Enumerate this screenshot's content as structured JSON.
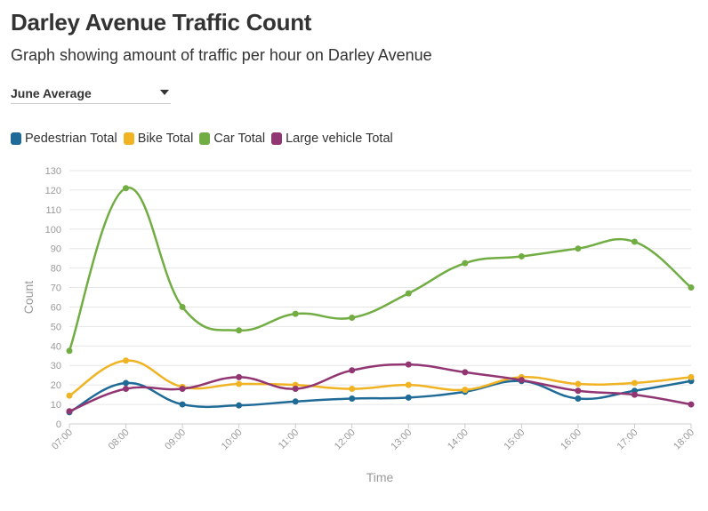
{
  "page": {
    "title": "Darley Avenue Traffic Count",
    "subtitle": "Graph showing amount of traffic per hour on Darley Avenue",
    "dropdown": {
      "selected": "June Average"
    }
  },
  "chart_data": {
    "type": "line",
    "x": [
      "07:00",
      "08:00",
      "09:00",
      "10:00",
      "11:00",
      "12:00",
      "13:00",
      "14:00",
      "15:00",
      "16:00",
      "17:00",
      "18:00"
    ],
    "xlabel": "Time",
    "ylabel": "Count",
    "ylim": [
      0,
      130
    ],
    "yticks": [
      0,
      10,
      20,
      30,
      40,
      50,
      60,
      70,
      80,
      90,
      100,
      110,
      120,
      130
    ],
    "grid": true,
    "legend_position": "top-left",
    "series": [
      {
        "name": "Pedestrian Total",
        "color": "#1f6a96",
        "values": [
          6,
          21,
          10,
          9.5,
          11.5,
          13,
          13.5,
          16.5,
          22,
          13,
          17,
          22
        ]
      },
      {
        "name": "Bike Total",
        "color": "#f0b323",
        "values": [
          14.5,
          32.5,
          19,
          20.5,
          20,
          18,
          20,
          17.5,
          24,
          20.5,
          21,
          24
        ]
      },
      {
        "name": "Car Total",
        "color": "#72ad44",
        "values": [
          37.5,
          121,
          60,
          48,
          56.5,
          54.5,
          67,
          82.5,
          86,
          90,
          93.5,
          70
        ]
      },
      {
        "name": "Large vehicle Total",
        "color": "#913672",
        "values": [
          6.5,
          18,
          18,
          24,
          18,
          27.5,
          30.5,
          26.5,
          22.5,
          17,
          15,
          10
        ]
      }
    ]
  }
}
